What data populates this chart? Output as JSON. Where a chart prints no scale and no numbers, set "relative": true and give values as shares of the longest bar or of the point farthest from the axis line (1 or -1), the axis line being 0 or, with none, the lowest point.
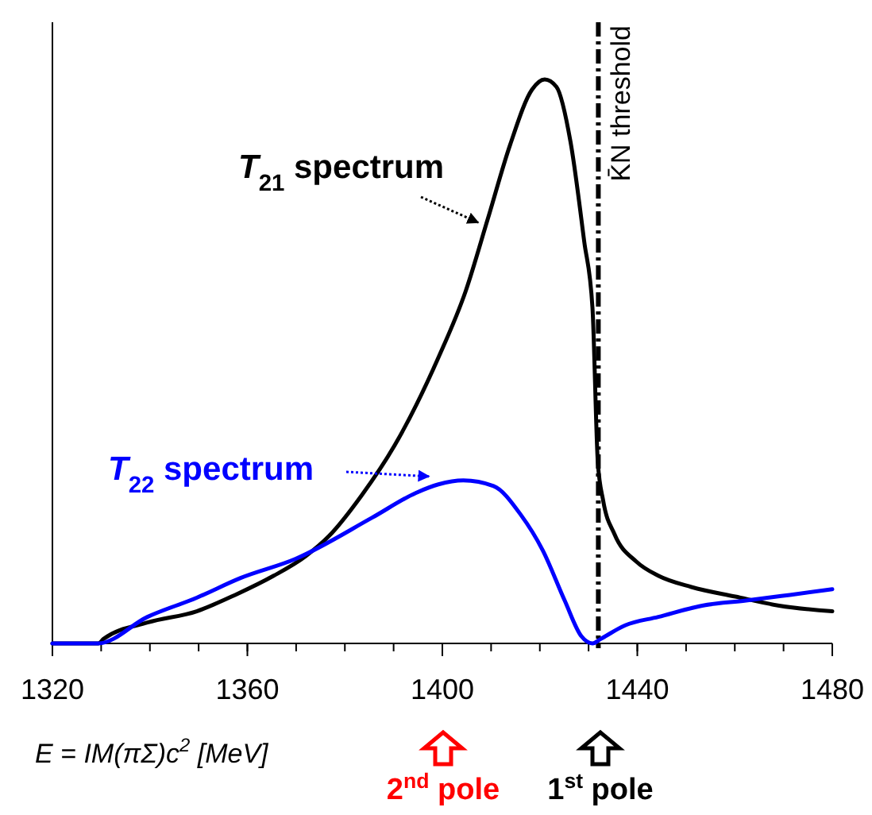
{
  "chart_data": {
    "type": "line",
    "relative": true,
    "xlabel": "E = IM(πΣ)c$^{2}$  [MeV]",
    "xlim": [
      1320,
      1480
    ],
    "xticks": [
      1320,
      1360,
      1400,
      1440,
      1480
    ],
    "tick_labels": "x",
    "grid": false,
    "series": [
      {
        "name": "T$_{21}$ spectrum",
        "color": "#000000",
        "x": [
          1320,
          1329.4,
          1330.5,
          1339.5,
          1349.6,
          1357.5,
          1365.4,
          1372,
          1376.7,
          1383.4,
          1390.2,
          1399.2,
          1404.8,
          1409.3,
          1413.9,
          1418.4,
          1421,
          1423.4,
          1426.3,
          1429.1,
          1430.8,
          1431.9,
          1433,
          1435.3,
          1439.8,
          1444.3,
          1451.1,
          1460.1,
          1469.1,
          1480
        ],
        "values": [
          0,
          0,
          0.008,
          0.037,
          0.057,
          0.086,
          0.12,
          0.155,
          0.19,
          0.262,
          0.351,
          0.507,
          0.625,
          0.752,
          0.884,
          0.982,
          1,
          0.987,
          0.889,
          0.713,
          0.595,
          0.321,
          0.253,
          0.194,
          0.145,
          0.12,
          0.1,
          0.083,
          0.067,
          0.057
        ]
      },
      {
        "name": "T$_{22}$ spectrum",
        "color": "#0000ff",
        "x": [
          1320,
          1329.4,
          1339.5,
          1349.6,
          1358.6,
          1369.9,
          1385.6,
          1394.6,
          1399.2,
          1404.3,
          1410.5,
          1416.1,
          1420.6,
          1425.1,
          1428.5,
          1430.8,
          1432.5,
          1437.5,
          1444.3,
          1453.3,
          1462.3,
          1471.3,
          1480
        ],
        "values": [
          0,
          0,
          0.047,
          0.081,
          0.116,
          0.15,
          0.223,
          0.267,
          0.282,
          0.289,
          0.279,
          0.228,
          0.165,
          0.076,
          0.013,
          0,
          0.008,
          0.032,
          0.047,
          0.067,
          0.076,
          0.086,
          0.096
        ]
      }
    ],
    "ref_lines": [
      {
        "axis": "x",
        "value": 1432,
        "label": "K̄N threshold",
        "color": "#000000",
        "line_style": "dashed"
      }
    ],
    "annotations": [
      "2$^{nd}$ pole",
      "1$^{st}$ pole"
    ]
  }
}
